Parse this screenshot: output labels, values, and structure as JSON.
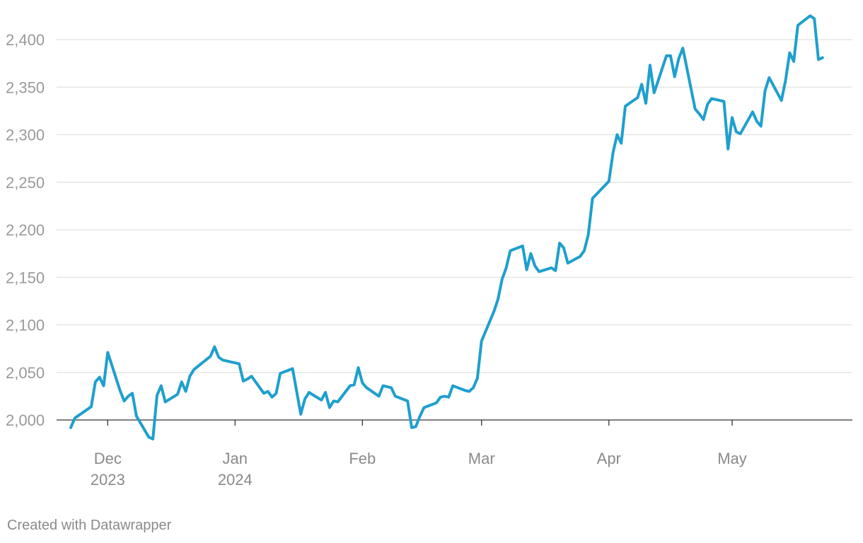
{
  "footer": {
    "credit": "Created with Datawrapper"
  },
  "colors": {
    "line": "#1f9fce",
    "grid": "#e1e1e1",
    "axis": "#333333",
    "tick_text": "#9a9a9a"
  },
  "chart_data": {
    "type": "line",
    "title": "",
    "xlabel": "",
    "ylabel": "",
    "grid": true,
    "ylim": [
      1980,
      2430
    ],
    "yticks": [
      2000,
      2050,
      2100,
      2150,
      2200,
      2250,
      2300,
      2350,
      2400
    ],
    "ytick_labels": [
      "2,000",
      "2,050",
      "2,100",
      "2,150",
      "2,200",
      "2,250",
      "2,300",
      "2,350",
      "2,400"
    ],
    "xlim": [
      "2023-11-22",
      "2024-05-27"
    ],
    "xticks": [
      {
        "date": "2023-12-01",
        "line1": "Dec",
        "line2": "2023"
      },
      {
        "date": "2024-01-01",
        "line1": "Jan",
        "line2": "2024"
      },
      {
        "date": "2024-02-01",
        "line1": "Feb",
        "line2": ""
      },
      {
        "date": "2024-03-01",
        "line1": "Mar",
        "line2": ""
      },
      {
        "date": "2024-04-01",
        "line1": "Apr",
        "line2": ""
      },
      {
        "date": "2024-05-01",
        "line1": "May",
        "line2": ""
      }
    ],
    "series": [
      {
        "points": [
          [
            "2023-11-22",
            1992
          ],
          [
            "2023-11-23",
            2002
          ],
          [
            "2023-11-27",
            2014
          ],
          [
            "2023-11-28",
            2040
          ],
          [
            "2023-11-29",
            2045
          ],
          [
            "2023-11-30",
            2036
          ],
          [
            "2023-12-01",
            2071
          ],
          [
            "2023-12-04",
            2031
          ],
          [
            "2023-12-05",
            2020
          ],
          [
            "2023-12-06",
            2025
          ],
          [
            "2023-12-07",
            2028
          ],
          [
            "2023-12-08",
            2004
          ],
          [
            "2023-12-11",
            1982
          ],
          [
            "2023-12-12",
            1980
          ],
          [
            "2023-12-13",
            2026
          ],
          [
            "2023-12-14",
            2036
          ],
          [
            "2023-12-15",
            2019
          ],
          [
            "2023-12-18",
            2027
          ],
          [
            "2023-12-19",
            2040
          ],
          [
            "2023-12-20",
            2030
          ],
          [
            "2023-12-21",
            2046
          ],
          [
            "2023-12-22",
            2053
          ],
          [
            "2023-12-26",
            2067
          ],
          [
            "2023-12-27",
            2077
          ],
          [
            "2023-12-28",
            2066
          ],
          [
            "2023-12-29",
            2063
          ],
          [
            "2024-01-02",
            2059
          ],
          [
            "2024-01-03",
            2041
          ],
          [
            "2024-01-04",
            2043
          ],
          [
            "2024-01-05",
            2046
          ],
          [
            "2024-01-08",
            2028
          ],
          [
            "2024-01-09",
            2030
          ],
          [
            "2024-01-10",
            2024
          ],
          [
            "2024-01-11",
            2028
          ],
          [
            "2024-01-12",
            2049
          ],
          [
            "2024-01-15",
            2054
          ],
          [
            "2024-01-16",
            2030
          ],
          [
            "2024-01-17",
            2006
          ],
          [
            "2024-01-18",
            2022
          ],
          [
            "2024-01-19",
            2029
          ],
          [
            "2024-01-22",
            2021
          ],
          [
            "2024-01-23",
            2029
          ],
          [
            "2024-01-24",
            2013
          ],
          [
            "2024-01-25",
            2020
          ],
          [
            "2024-01-26",
            2019
          ],
          [
            "2024-01-29",
            2036
          ],
          [
            "2024-01-30",
            2037
          ],
          [
            "2024-01-31",
            2055
          ],
          [
            "2024-02-01",
            2039
          ],
          [
            "2024-02-02",
            2034
          ],
          [
            "2024-02-05",
            2025
          ],
          [
            "2024-02-06",
            2036
          ],
          [
            "2024-02-07",
            2035
          ],
          [
            "2024-02-08",
            2034
          ],
          [
            "2024-02-09",
            2025
          ],
          [
            "2024-02-12",
            2020
          ],
          [
            "2024-02-13",
            1992
          ],
          [
            "2024-02-14",
            1993
          ],
          [
            "2024-02-15",
            2004
          ],
          [
            "2024-02-16",
            2013
          ],
          [
            "2024-02-19",
            2018
          ],
          [
            "2024-02-20",
            2024
          ],
          [
            "2024-02-21",
            2025
          ],
          [
            "2024-02-22",
            2024
          ],
          [
            "2024-02-23",
            2036
          ],
          [
            "2024-02-26",
            2031
          ],
          [
            "2024-02-27",
            2030
          ],
          [
            "2024-02-28",
            2034
          ],
          [
            "2024-02-29",
            2044
          ],
          [
            "2024-03-01",
            2083
          ],
          [
            "2024-03-04",
            2114
          ],
          [
            "2024-03-05",
            2127
          ],
          [
            "2024-03-06",
            2148
          ],
          [
            "2024-03-07",
            2160
          ],
          [
            "2024-03-08",
            2178
          ],
          [
            "2024-03-11",
            2183
          ],
          [
            "2024-03-12",
            2158
          ],
          [
            "2024-03-13",
            2175
          ],
          [
            "2024-03-14",
            2162
          ],
          [
            "2024-03-15",
            2156
          ],
          [
            "2024-03-18",
            2160
          ],
          [
            "2024-03-19",
            2157
          ],
          [
            "2024-03-20",
            2186
          ],
          [
            "2024-03-21",
            2181
          ],
          [
            "2024-03-22",
            2165
          ],
          [
            "2024-03-25",
            2172
          ],
          [
            "2024-03-26",
            2178
          ],
          [
            "2024-03-27",
            2195
          ],
          [
            "2024-03-28",
            2233
          ],
          [
            "2024-04-01",
            2251
          ],
          [
            "2024-04-02",
            2281
          ],
          [
            "2024-04-03",
            2300
          ],
          [
            "2024-04-04",
            2291
          ],
          [
            "2024-04-05",
            2330
          ],
          [
            "2024-04-08",
            2339
          ],
          [
            "2024-04-09",
            2353
          ],
          [
            "2024-04-10",
            2333
          ],
          [
            "2024-04-11",
            2373
          ],
          [
            "2024-04-12",
            2344
          ],
          [
            "2024-04-15",
            2383
          ],
          [
            "2024-04-16",
            2383
          ],
          [
            "2024-04-17",
            2361
          ],
          [
            "2024-04-18",
            2380
          ],
          [
            "2024-04-19",
            2391
          ],
          [
            "2024-04-22",
            2327
          ],
          [
            "2024-04-23",
            2322
          ],
          [
            "2024-04-24",
            2316
          ],
          [
            "2024-04-25",
            2332
          ],
          [
            "2024-04-26",
            2338
          ],
          [
            "2024-04-29",
            2335
          ],
          [
            "2024-04-30",
            2285
          ],
          [
            "2024-05-01",
            2318
          ],
          [
            "2024-05-02",
            2303
          ],
          [
            "2024-05-03",
            2301
          ],
          [
            "2024-05-06",
            2324
          ],
          [
            "2024-05-07",
            2314
          ],
          [
            "2024-05-08",
            2309
          ],
          [
            "2024-05-09",
            2346
          ],
          [
            "2024-05-10",
            2360
          ],
          [
            "2024-05-13",
            2336
          ],
          [
            "2024-05-14",
            2357
          ],
          [
            "2024-05-15",
            2386
          ],
          [
            "2024-05-16",
            2377
          ],
          [
            "2024-05-17",
            2415
          ],
          [
            "2024-05-20",
            2425
          ],
          [
            "2024-05-21",
            2422
          ],
          [
            "2024-05-22",
            2379
          ],
          [
            "2024-05-23",
            2381
          ]
        ]
      }
    ]
  }
}
